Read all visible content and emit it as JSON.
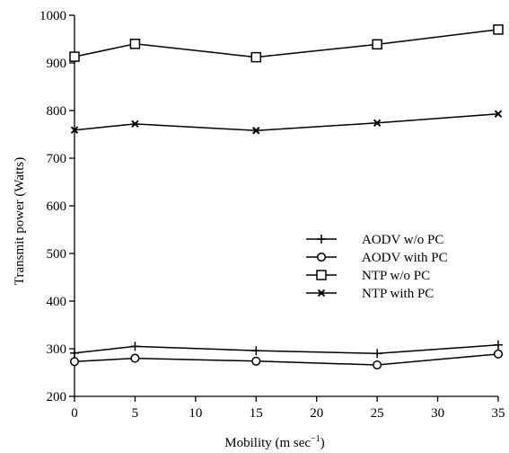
{
  "chart_data": {
    "type": "line",
    "title": "",
    "xlabel": "Mobility (m sec",
    "xlabel_sup": "−1",
    "xlabel_close": ")",
    "ylabel": "Transmit power (Watts)",
    "x": [
      0,
      5,
      15,
      25,
      35
    ],
    "xlim": [
      0,
      35
    ],
    "ylim": [
      200,
      1000
    ],
    "xticks": [
      0,
      5,
      10,
      15,
      20,
      25,
      30,
      35
    ],
    "yticks": [
      200,
      300,
      400,
      500,
      600,
      700,
      800,
      900,
      1000
    ],
    "grid": false,
    "legend_position": "center-right",
    "series": [
      {
        "name": "AODV w/o PC",
        "marker": "plus",
        "values": [
          291,
          305,
          296,
          290,
          308
        ]
      },
      {
        "name": "AODV with PC",
        "marker": "circle",
        "values": [
          273,
          280,
          274,
          266,
          289
        ]
      },
      {
        "name": "NTP w/o PC",
        "marker": "square",
        "values": [
          913,
          940,
          912,
          939,
          970
        ]
      },
      {
        "name": "NTP with PC",
        "marker": "x",
        "values": [
          759,
          772,
          758,
          774,
          793
        ]
      }
    ],
    "colors": {
      "line": "#000000",
      "background": "#ffffff"
    }
  }
}
